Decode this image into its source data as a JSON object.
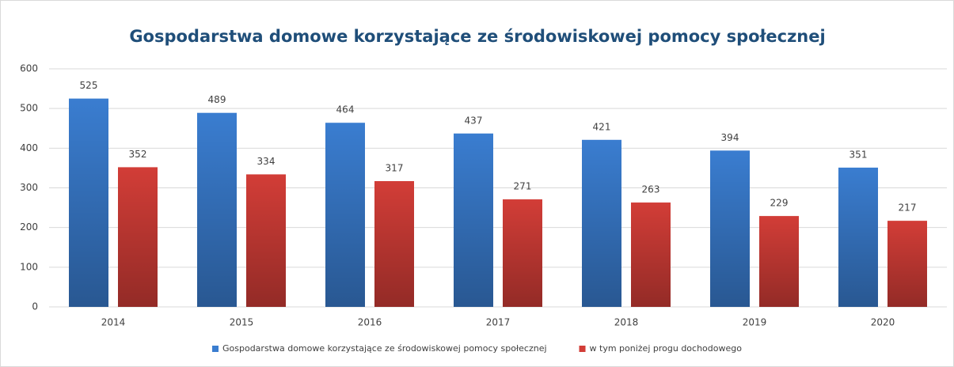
{
  "chart_data": {
    "type": "bar",
    "title": "Gospodarstwa  domowe korzystające  ze środowiskowej  pomocy  społecznej",
    "categories": [
      "2014",
      "2015",
      "2016",
      "2017",
      "2018",
      "2019",
      "2020"
    ],
    "series": [
      {
        "name": "Gospodarstwa domowe korzystające ze środowiskowej pomocy społecznej",
        "color": "#3a7dd0",
        "values": [
          525,
          489,
          464,
          437,
          421,
          394,
          351
        ]
      },
      {
        "name": "w tym poniżej progu dochodowego",
        "color": "#d23d37",
        "values": [
          352,
          334,
          317,
          271,
          263,
          229,
          217
        ]
      }
    ],
    "ylim": [
      0,
      600
    ],
    "yticks": [
      0,
      100,
      200,
      300,
      400,
      500,
      600
    ],
    "grid": true,
    "legend": "bottom"
  }
}
